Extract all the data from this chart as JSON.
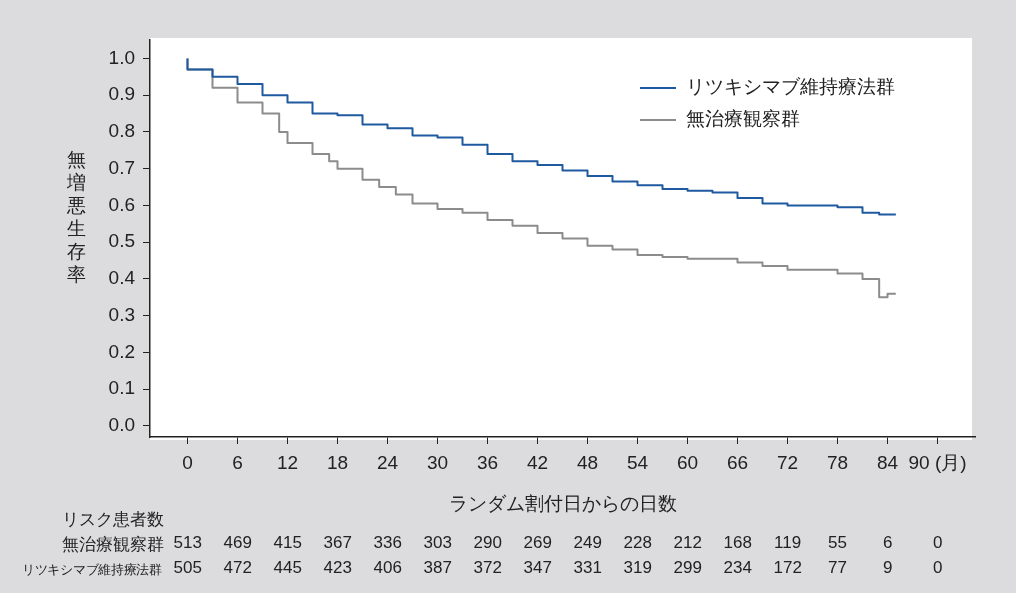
{
  "chart_data": {
    "type": "step",
    "xlabel": "ランダム割付日からの日数",
    "ylabel": "無増悪生存率",
    "xlim": [
      -4.5,
      94.5
    ],
    "xticks": [
      0,
      6,
      12,
      18,
      24,
      30,
      36,
      42,
      48,
      54,
      60,
      66,
      72,
      78,
      84,
      {
        "value": 90,
        "label": "90 (月)"
      }
    ],
    "ylim": [
      -0.03,
      1.05
    ],
    "yticks": [
      {
        "value": 0,
        "label": "0.0"
      },
      0.1,
      0.2,
      0.3,
      0.4,
      0.5,
      0.6,
      0.7,
      0.8,
      0.9,
      {
        "value": 1,
        "label": "1.0"
      }
    ],
    "grid": false,
    "legend": "top right",
    "marker": "none",
    "line_style": "solid",
    "series": [
      {
        "name": "リツキシマブ維持療法群",
        "color": "#1f5aa0",
        "x": [
          0,
          3,
          6,
          9,
          12,
          15,
          18,
          21,
          24,
          27,
          30,
          33,
          36,
          39,
          42,
          45,
          48,
          51,
          54,
          57,
          60,
          63,
          66,
          69,
          72,
          75,
          78,
          81,
          83,
          85
        ],
        "values": [
          1.0,
          0.97,
          0.95,
          0.93,
          0.9,
          0.88,
          0.85,
          0.845,
          0.82,
          0.81,
          0.79,
          0.785,
          0.765,
          0.74,
          0.72,
          0.71,
          0.695,
          0.68,
          0.665,
          0.655,
          0.645,
          0.64,
          0.635,
          0.62,
          0.605,
          0.6,
          0.6,
          0.595,
          0.58,
          0.575
        ]
      },
      {
        "name": "無治療観察群",
        "color": "#8c8c8c",
        "x": [
          0,
          3,
          6,
          9,
          11,
          12,
          15,
          17,
          18,
          21,
          23,
          25,
          27,
          30,
          33,
          36,
          39,
          42,
          45,
          48,
          51,
          54,
          57,
          60,
          63,
          66,
          69,
          72,
          75,
          78,
          81,
          83,
          84,
          85
        ],
        "values": [
          1.0,
          0.97,
          0.92,
          0.88,
          0.85,
          0.8,
          0.77,
          0.74,
          0.72,
          0.7,
          0.67,
          0.65,
          0.63,
          0.605,
          0.59,
          0.58,
          0.56,
          0.545,
          0.525,
          0.51,
          0.49,
          0.48,
          0.465,
          0.46,
          0.455,
          0.455,
          0.445,
          0.435,
          0.425,
          0.425,
          0.415,
          0.4,
          0.35,
          0.36
        ]
      }
    ],
    "annotations": [
      "リスク患者数",
      "無治療観察群 513 469 415 367 336 303 290 269 249 228 212 168 119 55 6 0",
      "リツキシマブ維持療法群 505 472 445 423 406 387 372 347 331 319 299 234 172 77 9 0"
    ]
  }
}
